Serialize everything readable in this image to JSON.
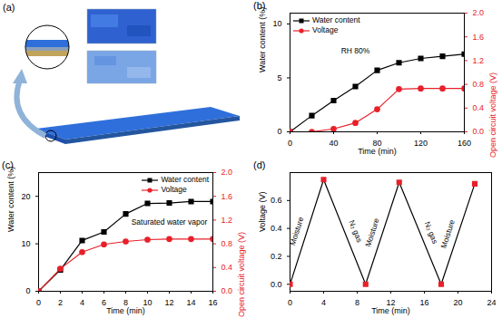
{
  "schematic": {
    "title": "(a)"
  },
  "chart_data": [
    {
      "type": "line",
      "title": "(b)",
      "x_label": "Time (min)",
      "y_label": "Water content (%)",
      "y2_label": "Open circuit voltage (V)",
      "annotations": [
        {
          "text": "RH 80%",
          "x": 60,
          "y": 7.5
        }
      ],
      "x": [
        0,
        20,
        40,
        60,
        80,
        100,
        120,
        140,
        160
      ],
      "series": [
        {
          "name": "Water content",
          "color": "#000000",
          "marker": "square",
          "values": [
            0,
            1.5,
            2.9,
            4.2,
            5.7,
            6.4,
            6.8,
            7.0,
            7.2
          ]
        },
        {
          "name": "Voltage",
          "color": "#e8202a",
          "marker": "circle",
          "axis": "y2",
          "values": [
            0,
            0,
            0.05,
            0.15,
            0.38,
            0.72,
            0.73,
            0.73,
            0.73
          ]
        }
      ],
      "xlim": [
        0,
        160
      ],
      "xticks": [
        0,
        40,
        80,
        120,
        160
      ],
      "ylim": [
        0,
        11
      ],
      "yticks": [
        0,
        5,
        10
      ],
      "y2lim": [
        0,
        2
      ],
      "y2ticks": [
        {
          "value": 0,
          "label": "0.0"
        },
        {
          "value": 0.4,
          "label": "0.4"
        },
        {
          "value": 0.8,
          "label": "0.8"
        },
        {
          "value": 1.2,
          "label": "1.2"
        },
        {
          "value": 1.6,
          "label": "1.6"
        },
        {
          "value": 2,
          "label": "2.0"
        }
      ],
      "legend": "top-left"
    },
    {
      "type": "line",
      "title": "(c)",
      "x_label": "Time (min)",
      "y_label": "Water content (%)",
      "y2_label": "Open circuit voltage (V)",
      "annotations": [
        {
          "text": "Saturated water vapor",
          "x": 12,
          "y": 14.5
        }
      ],
      "x": [
        0,
        2,
        4,
        6,
        8,
        10,
        12,
        14,
        16
      ],
      "series": [
        {
          "name": "Water content",
          "color": "#000000",
          "marker": "square",
          "values": [
            0,
            4.5,
            10.7,
            12.5,
            16.3,
            18.5,
            18.6,
            18.9,
            18.9
          ]
        },
        {
          "name": "Voltage",
          "color": "#e8202a",
          "marker": "circle",
          "axis": "y2",
          "values": [
            0,
            0.38,
            0.66,
            0.79,
            0.84,
            0.87,
            0.88,
            0.88,
            0.88
          ]
        }
      ],
      "xlim": [
        0,
        16
      ],
      "xticks": [
        0,
        2,
        4,
        6,
        8,
        10,
        12,
        14,
        16
      ],
      "ylim": [
        0,
        25
      ],
      "yticks": [
        0,
        10,
        20
      ],
      "y2lim": [
        0,
        2
      ],
      "y2ticks": [
        {
          "value": 0,
          "label": "0.0"
        },
        {
          "value": 0.4,
          "label": "0.4"
        },
        {
          "value": 0.8,
          "label": "0.8"
        },
        {
          "value": 1.2,
          "label": "1.2"
        },
        {
          "value": 1.6,
          "label": "1.6"
        },
        {
          "value": 2,
          "label": "2.0"
        }
      ],
      "legend": "top-right"
    },
    {
      "type": "line",
      "title": "(d)",
      "x_label": "Time (min)",
      "y_label": "Voltage (V)",
      "color": "#000000",
      "annotations": [
        {
          "text": "Moisture",
          "x": 0.8,
          "y": 0.38
        },
        {
          "text": "N₂ gas",
          "x": 7.8,
          "y": 0.38
        },
        {
          "text": "Moisture",
          "x": 9.8,
          "y": 0.37
        },
        {
          "text": "N₂ gas",
          "x": 16.8,
          "y": 0.37
        },
        {
          "text": "Moisture",
          "x": 18.8,
          "y": 0.36
        }
      ],
      "x": [
        0,
        4,
        9,
        13,
        18,
        22
      ],
      "series": [
        {
          "color": "#e8202a",
          "marker": "square",
          "values": [
            0,
            0.75,
            0,
            0.73,
            0,
            0.72
          ]
        }
      ],
      "xlim": [
        0,
        24
      ],
      "xticks": [
        0,
        4,
        8,
        12,
        16,
        20,
        24
      ],
      "ylim": [
        -0.05,
        0.8
      ],
      "yticks": [
        {
          "value": 0,
          "label": "0.0"
        },
        {
          "value": 0.2,
          "label": "0.2"
        },
        {
          "value": 0.4,
          "label": "0.4"
        },
        {
          "value": 0.6,
          "label": "0.6"
        }
      ]
    }
  ]
}
